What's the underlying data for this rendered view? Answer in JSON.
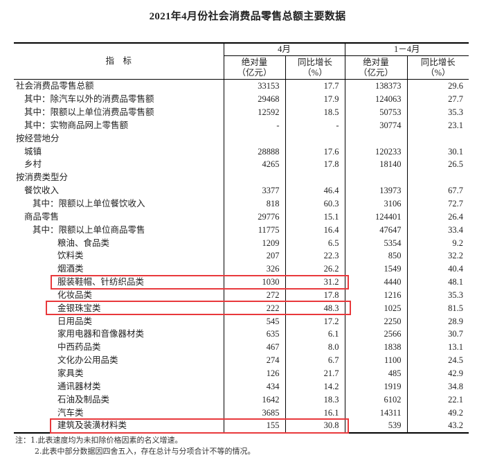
{
  "title": "2021年4月份社会消费品零售总额主要数据",
  "header": {
    "indicator": "指　标",
    "groups": [
      "4月",
      "1－4月"
    ],
    "subcols": [
      {
        "line1": "绝对量",
        "line2": "（亿元）"
      },
      {
        "line1": "同比增长",
        "line2": "（%）"
      },
      {
        "line1": "绝对量",
        "line2": "（亿元）"
      },
      {
        "line1": "同比增长",
        "line2": "（%）"
      }
    ]
  },
  "rows": [
    {
      "label": "社会消费品零售总额",
      "level": 0,
      "values": [
        "33153",
        "17.7",
        "138373",
        "29.6"
      ]
    },
    {
      "label": "其中：除汽车以外的消费品零售额",
      "level": 1,
      "values": [
        "29468",
        "17.9",
        "124063",
        "27.7"
      ]
    },
    {
      "label": "其中：限额以上单位消费品零售额",
      "level": 1,
      "values": [
        "12592",
        "18.5",
        "50753",
        "35.3"
      ]
    },
    {
      "label": "其中：实物商品网上零售额",
      "level": 1,
      "values": [
        "-",
        "-",
        "30774",
        "23.1"
      ]
    },
    {
      "label": "按经营地分",
      "level": 0,
      "values": [
        "",
        "",
        "",
        ""
      ]
    },
    {
      "label": "城镇",
      "level": 1,
      "values": [
        "28888",
        "17.6",
        "120233",
        "30.1"
      ]
    },
    {
      "label": "乡村",
      "level": 1,
      "values": [
        "4265",
        "17.8",
        "18140",
        "26.5"
      ]
    },
    {
      "label": "按消费类型分",
      "level": 0,
      "values": [
        "",
        "",
        "",
        ""
      ]
    },
    {
      "label": "餐饮收入",
      "level": 1,
      "values": [
        "3377",
        "46.4",
        "13973",
        "67.7"
      ]
    },
    {
      "label": "其中：限额以上单位餐饮收入",
      "level": 2,
      "values": [
        "818",
        "60.3",
        "3106",
        "72.7"
      ]
    },
    {
      "label": "商品零售",
      "level": 1,
      "values": [
        "29776",
        "15.1",
        "124401",
        "26.4"
      ]
    },
    {
      "label": "其中：限额以上单位商品零售",
      "level": 2,
      "values": [
        "11775",
        "16.4",
        "47647",
        "33.4"
      ]
    },
    {
      "label": "粮油、食品类",
      "level": 3,
      "values": [
        "1209",
        "6.5",
        "5354",
        "9.2"
      ]
    },
    {
      "label": "饮料类",
      "level": 3,
      "values": [
        "207",
        "22.3",
        "850",
        "32.2"
      ]
    },
    {
      "label": "烟酒类",
      "level": 3,
      "values": [
        "326",
        "26.2",
        "1549",
        "40.4"
      ]
    },
    {
      "label": "服装鞋帽、针纺织品类",
      "level": 3,
      "highlighted": true,
      "values": [
        "1030",
        "31.2",
        "4440",
        "48.1"
      ]
    },
    {
      "label": "化妆品类",
      "level": 3,
      "values": [
        "272",
        "17.8",
        "1216",
        "35.3"
      ]
    },
    {
      "label": "金银珠宝类",
      "level": 3,
      "highlighted": true,
      "values": [
        "222",
        "48.3",
        "1025",
        "81.5"
      ]
    },
    {
      "label": "日用品类",
      "level": 3,
      "values": [
        "545",
        "17.2",
        "2250",
        "28.9"
      ]
    },
    {
      "label": "家用电器和音像器材类",
      "level": 3,
      "values": [
        "635",
        "6.1",
        "2566",
        "30.7"
      ]
    },
    {
      "label": "中西药品类",
      "level": 3,
      "values": [
        "467",
        "8.0",
        "1838",
        "13.1"
      ]
    },
    {
      "label": "文化办公用品类",
      "level": 3,
      "values": [
        "274",
        "6.7",
        "1100",
        "24.5"
      ]
    },
    {
      "label": "家具类",
      "level": 3,
      "values": [
        "126",
        "21.7",
        "485",
        "42.9"
      ]
    },
    {
      "label": "通讯器材类",
      "level": 3,
      "values": [
        "434",
        "14.2",
        "1919",
        "34.8"
      ]
    },
    {
      "label": "石油及制品类",
      "level": 3,
      "values": [
        "1642",
        "18.3",
        "6102",
        "22.1"
      ]
    },
    {
      "label": "汽车类",
      "level": 3,
      "values": [
        "3685",
        "16.1",
        "14311",
        "49.2"
      ]
    },
    {
      "label": "建筑及装潢材料类",
      "level": 3,
      "highlighted": true,
      "values": [
        "155",
        "30.8",
        "539",
        "43.2"
      ]
    }
  ],
  "notes": [
    "注：1.此表速度均为未扣除价格因素的名义增速。",
    "2.此表中部分数据因四舍五入，存在总计与分项合计不等的情况。"
  ],
  "colors": {
    "highlight_box": "#e8383b"
  }
}
